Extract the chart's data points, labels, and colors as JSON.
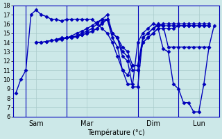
{
  "background_color": "#cce8e8",
  "grid_color": "#aacccc",
  "line_color": "#0000bb",
  "marker": "D",
  "markersize": 2.5,
  "linewidth": 1.0,
  "xlabel": "Température (°c)",
  "ylim": [
    6,
    18
  ],
  "yticks": [
    6,
    7,
    8,
    9,
    10,
    11,
    12,
    13,
    14,
    15,
    16,
    17,
    18
  ],
  "day_labels": [
    "Sam",
    "Mar",
    "Dim",
    "Lun"
  ],
  "vline_x": [
    2,
    10,
    24,
    32
  ],
  "xtick_x": [
    4,
    14,
    27,
    36
  ],
  "xlim": [
    -0.5,
    40
  ],
  "series": [
    {
      "x": [
        0,
        1,
        2,
        3,
        4,
        5,
        6,
        7,
        8,
        9,
        10,
        11,
        12,
        13,
        14,
        15,
        16,
        17,
        18,
        19,
        20,
        21,
        22,
        23,
        24,
        25,
        26,
        27,
        28,
        29,
        30,
        31,
        32,
        33,
        34,
        35,
        36,
        37,
        38
      ],
      "y": [
        8.5,
        10,
        11,
        17,
        17.5,
        17,
        16.8,
        16.5,
        16.5,
        16.3,
        16.5,
        16.5,
        16.5,
        16.5,
        16.5,
        16.5,
        16,
        15.5,
        15,
        14,
        12.5,
        11,
        9.5,
        9.5,
        14,
        15,
        15.5,
        16,
        15.8,
        15.8,
        15.8,
        15.8,
        15.8,
        15.8,
        15.8,
        15.8,
        15.8,
        15.8,
        15.8
      ]
    },
    {
      "x": [
        4,
        5,
        6,
        7,
        8,
        9,
        10,
        11,
        12,
        13,
        14,
        15,
        16,
        17,
        18,
        19,
        20,
        21,
        22,
        23,
        24,
        25,
        26,
        27,
        28,
        29,
        30,
        31,
        32,
        33,
        34,
        35,
        36,
        37,
        38
      ],
      "y": [
        14,
        14,
        14.1,
        14.2,
        14.3,
        14.4,
        14.5,
        14.5,
        14.7,
        15,
        15.2,
        15.5,
        16,
        16.5,
        17,
        15,
        14.5,
        13,
        12.5,
        11,
        11,
        14,
        14.5,
        15,
        15.5,
        15.5,
        15.5,
        15.5,
        15.8,
        15.8,
        15.8,
        15.8,
        15.8,
        15.8,
        15.8
      ]
    },
    {
      "x": [
        4,
        5,
        6,
        7,
        8,
        9,
        10,
        11,
        12,
        13,
        14,
        15,
        16,
        17,
        18,
        19,
        20,
        21,
        22,
        23,
        24,
        25,
        26,
        27,
        28,
        29,
        30,
        31,
        32,
        33,
        34,
        35,
        36,
        37,
        38
      ],
      "y": [
        14,
        14,
        14.1,
        14.2,
        14.3,
        14.5,
        14.5,
        14.7,
        15,
        15.2,
        15.5,
        15.8,
        16.2,
        16.5,
        16.5,
        15,
        14.5,
        13.5,
        13,
        11.5,
        11.5,
        14.5,
        15,
        15.5,
        15.8,
        16,
        16,
        16,
        16,
        16,
        16,
        16,
        16,
        16,
        16
      ]
    },
    {
      "x": [
        8,
        9,
        10,
        11,
        12,
        13,
        14,
        15,
        16,
        17,
        18,
        19,
        20,
        21,
        22,
        23,
        24,
        25,
        26,
        27,
        28,
        29,
        30,
        31,
        32,
        33,
        34,
        35,
        36,
        37,
        38
      ],
      "y": [
        14.2,
        14.3,
        14.5,
        14.5,
        14.6,
        14.8,
        15,
        15.2,
        15.5,
        16,
        16.5,
        15,
        14.5,
        12.5,
        12,
        9.2,
        9.2,
        14.5,
        15,
        15.5,
        16,
        15.8,
        13.5,
        13.5,
        13.5,
        13.5,
        13.5,
        13.5,
        13.5,
        13.5,
        13.5
      ]
    },
    {
      "x": [
        8,
        9,
        10,
        11,
        12,
        13,
        14,
        15,
        16,
        17,
        18,
        19,
        20,
        21,
        22,
        23,
        24,
        25,
        26,
        27,
        28,
        29,
        30,
        31,
        32,
        33,
        34,
        35,
        36,
        37,
        38,
        39
      ],
      "y": [
        14.3,
        14.4,
        14.5,
        14.6,
        14.7,
        14.8,
        15,
        15.2,
        15.5,
        16.2,
        16.5,
        14.5,
        13.5,
        11,
        10.5,
        11.5,
        11.5,
        14,
        14.5,
        15,
        15.5,
        13.3,
        13,
        9.5,
        9,
        7.5,
        7.5,
        6.5,
        6.5,
        9.5,
        13.5,
        15.8
      ]
    }
  ]
}
